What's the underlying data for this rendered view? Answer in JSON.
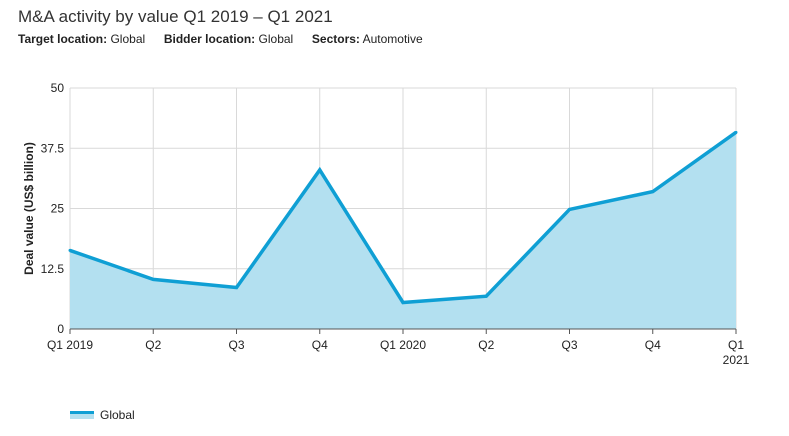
{
  "title": "M&A activity by value Q1 2019 – Q1 2021",
  "filters": {
    "target_label": "Target location:",
    "target_value": "Global",
    "bidder_label": "Bidder location:",
    "bidder_value": "Global",
    "sectors_label": "Sectors:",
    "sectors_value": "Automotive"
  },
  "colors": {
    "line": "#0f9fd4",
    "fill": "#b3e0f0",
    "grid": "#d9d9d9"
  },
  "chart_data": {
    "type": "area",
    "title": "M&A activity by value Q1 2019 – Q1 2021",
    "ylabel": "Deal value (US$ billion)",
    "xlabel": "",
    "categories": [
      [
        "Q1 2019"
      ],
      [
        "Q2"
      ],
      [
        "Q3"
      ],
      [
        "Q4"
      ],
      [
        "Q1 2020"
      ],
      [
        "Q2"
      ],
      [
        "Q3"
      ],
      [
        "Q4"
      ],
      [
        "Q1",
        "2021"
      ]
    ],
    "series": [
      {
        "name": "Global",
        "values": [
          16.3,
          10.3,
          8.6,
          33.0,
          5.5,
          6.8,
          24.8,
          28.5,
          40.8
        ]
      }
    ],
    "ylim": [
      0,
      50
    ],
    "yticks": [
      "0",
      "12.5",
      "25",
      "37.5",
      "50"
    ],
    "ytick_values": [
      0,
      12.5,
      25,
      37.5,
      50
    ],
    "grid": true,
    "legend_position": "bottom-left"
  }
}
